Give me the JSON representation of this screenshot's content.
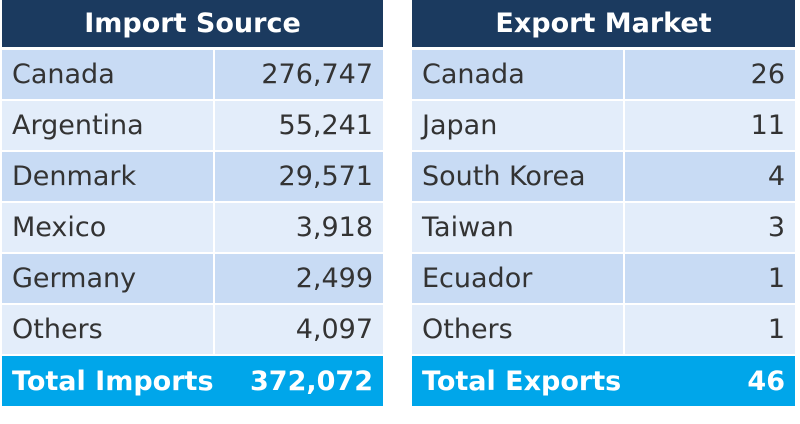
{
  "tables": [
    {
      "header": "Import Source",
      "rows": [
        [
          "Canada",
          "276,747"
        ],
        [
          "Argentina",
          "55,241"
        ],
        [
          "Denmark",
          "29,571"
        ],
        [
          "Mexico",
          "3,918"
        ],
        [
          "Germany",
          "2,499"
        ],
        [
          "Others",
          "4,097"
        ]
      ],
      "total": [
        "Total Imports",
        "372,072"
      ]
    },
    {
      "header": "Export Market",
      "rows": [
        [
          "Canada",
          "26"
        ],
        [
          "Japan",
          "11"
        ],
        [
          "South Korea",
          "4"
        ],
        [
          "Taiwan",
          "3"
        ],
        [
          "Ecuador",
          "1"
        ],
        [
          "Others",
          "1"
        ]
      ],
      "total": [
        "Total Exports",
        "46"
      ]
    }
  ]
}
